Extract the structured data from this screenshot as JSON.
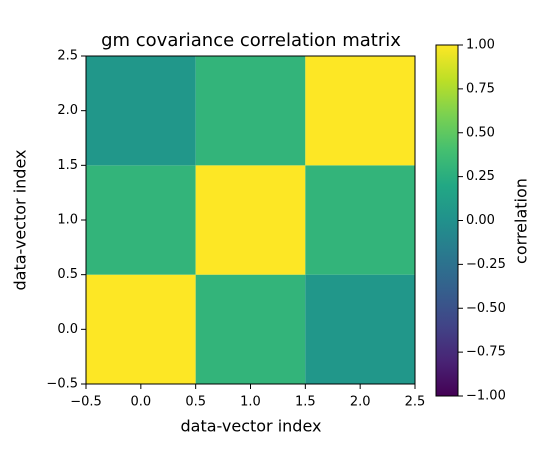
{
  "chart_data": {
    "type": "heatmap",
    "title": "gm covariance correlation matrix",
    "x_label": "data-vector index",
    "y_label": "data-vector index",
    "x": [
      0,
      1,
      2
    ],
    "y": [
      0,
      1,
      2
    ],
    "z": [
      [
        1.0,
        0.3,
        0.05
      ],
      [
        0.3,
        1.0,
        0.3
      ],
      [
        0.05,
        0.3,
        1.0
      ]
    ],
    "colormap": "viridis",
    "xlim": [
      -0.5,
      2.5
    ],
    "ylim": [
      -0.5,
      2.5
    ],
    "xticks": [
      {
        "value": -0.5,
        "label": "−0.5"
      },
      {
        "value": 0,
        "label": "0.0"
      },
      0.5,
      {
        "value": 1,
        "label": "1.0"
      },
      1.5,
      {
        "value": 2,
        "label": "2.0"
      },
      2.5
    ],
    "yticks": [
      {
        "value": -0.5,
        "label": "−0.5"
      },
      {
        "value": 0,
        "label": "0.0"
      },
      0.5,
      {
        "value": 1,
        "label": "1.0"
      },
      1.5,
      {
        "value": 2,
        "label": "2.0"
      },
      2.5
    ],
    "colorbar": {
      "label": "correlation",
      "clim": [
        -1,
        1
      ],
      "ticks": [
        {
          "value": -1,
          "label": "−1.00"
        },
        {
          "value": -0.75,
          "label": "−0.75"
        },
        {
          "value": -0.5,
          "label": "−0.50"
        },
        {
          "value": -0.25,
          "label": "−0.25"
        },
        {
          "value": 0,
          "label": "0.00"
        },
        0.25,
        {
          "value": 0.5,
          "label": "0.50"
        },
        0.75,
        {
          "value": 1,
          "label": "1.00"
        }
      ]
    }
  }
}
